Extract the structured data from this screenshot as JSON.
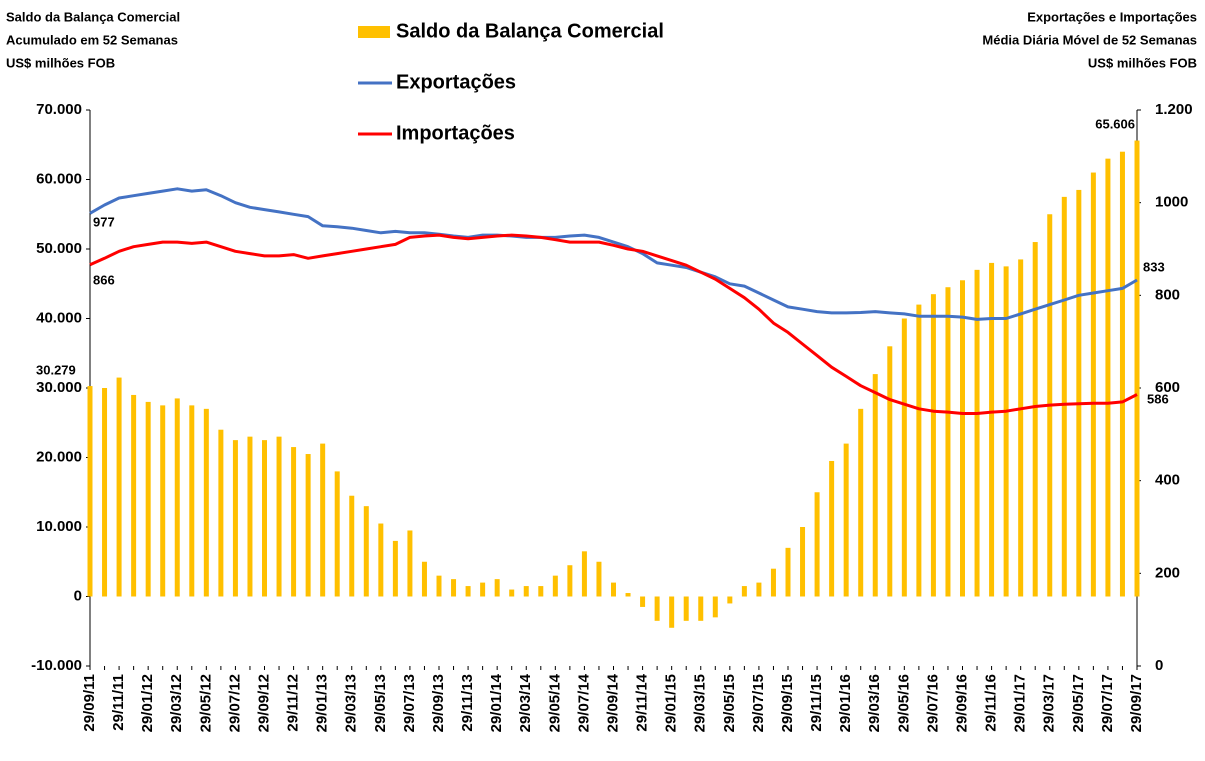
{
  "chart_data": {
    "type": "bar_line_combo",
    "y_title": [
      "Saldo da Balança Comercial",
      "Acumulado em 52 Semanas",
      "US$ milhões FOB"
    ],
    "y2_title": [
      "Exportações e Importações",
      "Média Diária Móvel de 52 Semanas",
      "US$ milhões FOB"
    ],
    "categories": [
      "29/09/11",
      null,
      "29/11/11",
      null,
      "29/01/12",
      null,
      "29/03/12",
      null,
      "29/05/12",
      null,
      "29/07/12",
      null,
      "29/09/12",
      null,
      "29/11/12",
      null,
      "29/01/13",
      null,
      "29/03/13",
      null,
      "29/05/13",
      null,
      "29/07/13",
      null,
      "29/09/13",
      null,
      "29/11/13",
      null,
      "29/01/14",
      null,
      "29/03/14",
      null,
      "29/05/14",
      null,
      "29/07/14",
      null,
      "29/09/14",
      null,
      "29/11/14",
      null,
      "29/01/15",
      null,
      "29/03/15",
      null,
      "29/05/15",
      null,
      "29/07/15",
      null,
      "29/09/15",
      null,
      "29/11/15",
      null,
      "29/01/16",
      null,
      "29/03/16",
      null,
      "29/05/16",
      null,
      "29/07/16",
      null,
      "29/09/16",
      null,
      "29/11/16",
      null,
      "29/01/17",
      null,
      "29/03/17",
      null,
      "29/05/17",
      null,
      "29/07/17",
      null,
      "29/09/17"
    ],
    "series": [
      {
        "name": "Saldo da Balança Comercial",
        "color": "#ffc000",
        "axis": "y",
        "kind": "bar",
        "label_color": "#ed7d31",
        "values": [
          30279,
          30000,
          31500,
          29000,
          28000,
          27500,
          28500,
          27500,
          27000,
          24000,
          22500,
          23000,
          22500,
          23000,
          21500,
          20500,
          22000,
          18000,
          14500,
          13000,
          10500,
          8000,
          9500,
          5000,
          3000,
          2500,
          1500,
          2000,
          2500,
          1000,
          1500,
          1500,
          3000,
          4500,
          6500,
          5000,
          2000,
          500,
          -1500,
          -3500,
          -4500,
          -3500,
          -3500,
          -3000,
          -1000,
          1500,
          2000,
          4000,
          7000,
          10000,
          15000,
          19500,
          22000,
          27000,
          32000,
          36000,
          40000,
          42000,
          43500,
          44500,
          45500,
          47000,
          48000,
          47500,
          48500,
          51000,
          55000,
          57500,
          58500,
          61000,
          63000,
          64000,
          65606
        ],
        "value_labels": [
          "30.279",
          null,
          null,
          null,
          null,
          null,
          null,
          null,
          null,
          null,
          null,
          null,
          null,
          null,
          null,
          null,
          null,
          null,
          null,
          null,
          null,
          null,
          null,
          null,
          null,
          null,
          null,
          null,
          null,
          null,
          null,
          null,
          null,
          null,
          null,
          null,
          null,
          null,
          null,
          null,
          null,
          null,
          null,
          null,
          null,
          null,
          null,
          null,
          null,
          null,
          null,
          null,
          null,
          null,
          null,
          null,
          null,
          null,
          null,
          null,
          null,
          null,
          null,
          null,
          null,
          null,
          null,
          null,
          null,
          null,
          null,
          null,
          "65.606"
        ]
      },
      {
        "name": "Exportações",
        "color": "#4472c4",
        "axis": "y2",
        "kind": "line",
        "label_color": "#1f3864",
        "values": [
          977,
          995,
          1010,
          1015,
          1020,
          1025,
          1030,
          1025,
          1028,
          1015,
          1000,
          990,
          985,
          980,
          975,
          970,
          950,
          948,
          945,
          940,
          935,
          938,
          935,
          935,
          932,
          928,
          925,
          930,
          930,
          928,
          925,
          925,
          925,
          928,
          930,
          925,
          915,
          905,
          890,
          870,
          865,
          860,
          850,
          840,
          825,
          820,
          805,
          790,
          775,
          770,
          765,
          762,
          762,
          763,
          765,
          762,
          760,
          755,
          755,
          755,
          753,
          748,
          750,
          750,
          760,
          770,
          780,
          790,
          800,
          805,
          810,
          815,
          833
        ]
      },
      {
        "name": "Importações",
        "color": "#ff0000",
        "axis": "y2",
        "kind": "line",
        "label_color": "#ff0000",
        "values": [
          866,
          880,
          895,
          905,
          910,
          915,
          915,
          912,
          915,
          905,
          895,
          890,
          885,
          885,
          888,
          880,
          885,
          890,
          895,
          900,
          905,
          910,
          925,
          928,
          930,
          925,
          922,
          925,
          928,
          930,
          928,
          925,
          920,
          915,
          915,
          915,
          908,
          900,
          895,
          885,
          875,
          865,
          850,
          835,
          815,
          795,
          770,
          740,
          720,
          695,
          670,
          645,
          625,
          605,
          590,
          575,
          565,
          555,
          550,
          548,
          545,
          545,
          548,
          550,
          555,
          560,
          563,
          565,
          566,
          567,
          567,
          570,
          586
        ]
      }
    ],
    "ylim": [
      -10000,
      70000
    ],
    "yticks": [
      {
        "value": -10000,
        "label": "-10.000"
      },
      0,
      {
        "value": 10000,
        "label": "10.000"
      },
      {
        "value": 20000,
        "label": "20.000"
      },
      {
        "value": 30000,
        "label": "30.000"
      },
      {
        "value": 40000,
        "label": "40.000"
      },
      {
        "value": 50000,
        "label": "50.000"
      },
      {
        "value": 60000,
        "label": "60.000"
      },
      {
        "value": 70000,
        "label": "70.000"
      }
    ],
    "y2lim": [
      0,
      1200
    ],
    "y2ticks": [
      0,
      200,
      400,
      600,
      800,
      1000,
      {
        "value": 1200,
        "label": "1.200"
      }
    ],
    "grid": false
  }
}
